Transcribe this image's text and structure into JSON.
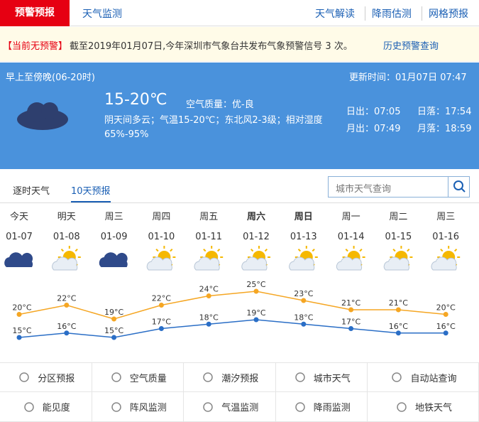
{
  "nav": {
    "active": "预警预报",
    "tab2": "天气监测",
    "links": [
      "天气解读",
      "降雨估测",
      "网格预报"
    ]
  },
  "alert": {
    "status": "【当前无预警】",
    "text": "截至2019年01月07日,今年深圳市气象台共发布气象预警信号 3 次。",
    "link": "历史预警查询"
  },
  "today": {
    "period": "早上至傍晚(06-20时)",
    "updated": "更新时间：01月07日 07:47",
    "temp": "15-20℃",
    "air": "空气质量：优-良",
    "desc": "阴天间多云；气温15-20℃；东北风2-3级；相对湿度65%-95%",
    "sunrise": "日出：07:05",
    "sunset": "日落：17:54",
    "moonrise": "月出：07:49",
    "moonset": "月落：18:59"
  },
  "tabs": [
    "逐时天气",
    "10天预报"
  ],
  "search": "城市天气查询",
  "forecast": {
    "days": [
      "今天",
      "明天",
      "周三",
      "周四",
      "周五",
      "周六",
      "周日",
      "周一",
      "周二",
      "周三"
    ],
    "dates": [
      "01-07",
      "01-08",
      "01-09",
      "01-10",
      "01-11",
      "01-12",
      "01-13",
      "01-14",
      "01-15",
      "01-16"
    ],
    "high": {
      "values": [
        20,
        22,
        19,
        22,
        24,
        25,
        23,
        21,
        21,
        20
      ],
      "value_labels": [
        "20°C",
        "22°C",
        "19°C",
        "22°C",
        "24°C",
        "25°C",
        "23°C",
        "21°C",
        "21°C",
        "20°C"
      ]
    },
    "low": {
      "values": [
        15,
        16,
        15,
        17,
        18,
        19,
        18,
        17,
        16,
        16
      ],
      "value_labels": [
        "15°C",
        "16°C",
        "15°C",
        "17°C",
        "18°C",
        "19°C",
        "18°C",
        "17°C",
        "16°C",
        "16°C"
      ]
    }
  },
  "services": [
    "分区预报",
    "空气质量",
    "潮汐预报",
    "城市天气",
    "自动站查询",
    "能见度",
    "阵风监测",
    "气温监测",
    "降雨监测",
    "地铁天气"
  ]
}
